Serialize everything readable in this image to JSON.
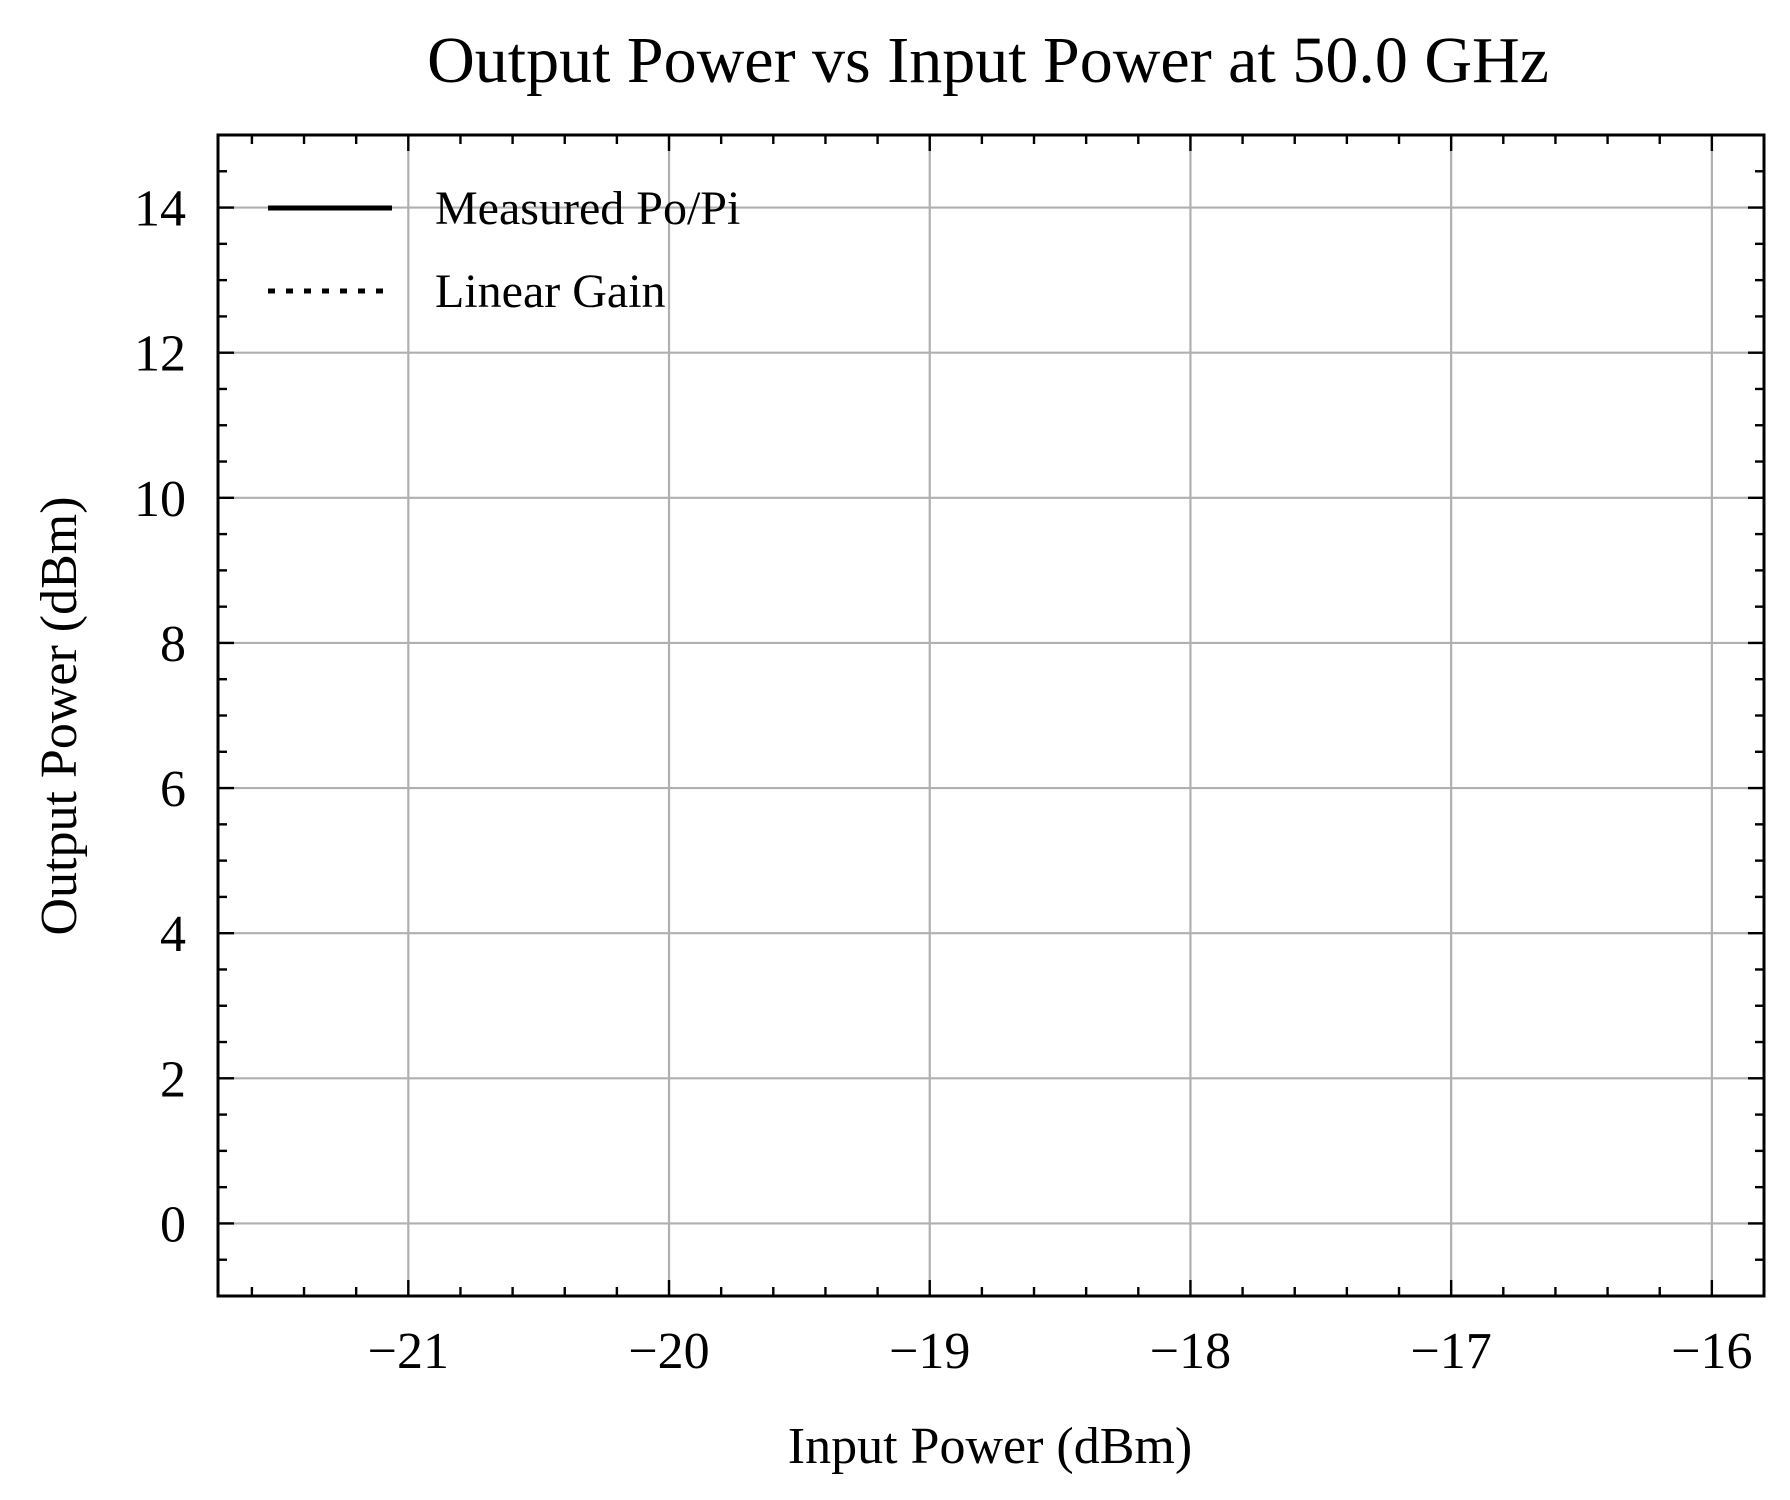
{
  "chart_data": {
    "type": "line",
    "title": "Output Power vs Input Power at 50.0 GHz",
    "xlabel": "Input Power (dBm)",
    "ylabel": "Output Power (dBm)",
    "xlim": [
      -21.73,
      -15.8
    ],
    "ylim": [
      -1.0,
      15.0
    ],
    "x_ticks": [
      -21,
      -20,
      -19,
      -18,
      -17,
      -16
    ],
    "x_tick_labels": [
      "−21",
      "−20",
      "−19",
      "−18",
      "−17",
      "−16"
    ],
    "x_minor_step": 0.2,
    "y_ticks": [
      0,
      2,
      4,
      6,
      8,
      10,
      12,
      14
    ],
    "y_tick_labels": [
      "0",
      "2",
      "4",
      "6",
      "8",
      "10",
      "12",
      "14"
    ],
    "y_minor_step": 0.5,
    "grid": true,
    "legend_position": "top-left",
    "series": [
      {
        "name": "Measured Po/Pi",
        "style": "solid",
        "color": "#000000",
        "x": [],
        "y": []
      },
      {
        "name": "Linear Gain",
        "style": "dotted",
        "color": "#000000",
        "x": [],
        "y": []
      }
    ]
  }
}
